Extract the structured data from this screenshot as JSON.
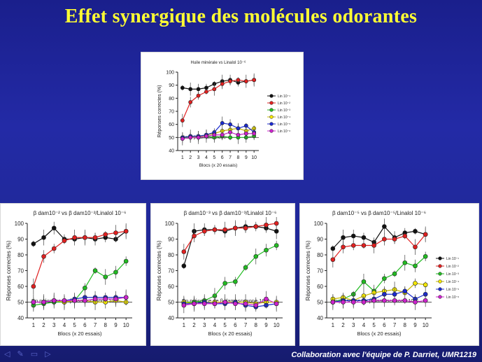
{
  "slide": {
    "title": "Effet synergique des molécules odorantes",
    "credit": "Collaboration avec l'équipe de P. Darriet, UMR1219"
  },
  "nav_icons": [
    "arrow-left-icon",
    "pencil-icon",
    "screen-icon",
    "arrow-right-icon"
  ],
  "chart_data": [
    {
      "type": "line",
      "title": "Huile minérale vs Linalol 10⁻⁶",
      "xlabel": "Blocs (x 20 essais)",
      "ylabel": "Réponses correctes (%)",
      "annotation": "Sans β damascenone",
      "x": [
        1,
        2,
        3,
        4,
        5,
        6,
        7,
        8,
        9,
        10
      ],
      "ylim": [
        40,
        100
      ],
      "yticks": [
        40,
        50,
        60,
        70,
        80,
        90,
        100
      ],
      "legend": [
        "Lin 10⁻¹",
        "Lin 10⁻²",
        "Lin 10⁻³",
        "Lin 10⁻⁴",
        "Lin 10⁻⁵",
        "Lin 10⁻⁶"
      ],
      "legend_position": "right",
      "series": [
        {
          "name": "Lin 10⁻¹",
          "color": "#111111",
          "values": [
            88,
            87,
            87,
            88,
            91,
            93,
            94,
            92,
            93,
            94
          ]
        },
        {
          "name": "Lin 10⁻²",
          "color": "#e02020",
          "values": [
            63,
            77,
            82,
            85,
            87,
            91,
            93,
            94,
            93,
            94
          ]
        },
        {
          "name": "Lin 10⁻³",
          "color": "#22bb22",
          "values": [
            50,
            50,
            51,
            51,
            50,
            51,
            50,
            50,
            50,
            51
          ]
        },
        {
          "name": "Lin 10⁻⁴",
          "color": "#f2e600",
          "values": [
            50,
            51,
            50,
            52,
            53,
            55,
            56,
            57,
            55,
            57
          ]
        },
        {
          "name": "Lin 10⁻⁵",
          "color": "#1a2ad0",
          "values": [
            50,
            51,
            51,
            52,
            54,
            61,
            60,
            57,
            59,
            54
          ]
        },
        {
          "name": "Lin 10⁻⁶",
          "color": "#cc22cc",
          "values": [
            49,
            50,
            50,
            51,
            52,
            52,
            54,
            52,
            53,
            53
          ]
        }
      ]
    },
    {
      "type": "line",
      "title": "β dam10⁻² vs β dam10⁻²/Linalol 10⁻⁶",
      "xlabel": "Blocs (x 20 essais)",
      "ylabel": "Réponses correctes (%)",
      "annotation": "En présence de β damascenone 10⁻²",
      "x": [
        1,
        2,
        3,
        4,
        5,
        6,
        7,
        8,
        9,
        10
      ],
      "ylim": [
        40,
        100
      ],
      "yticks": [
        40,
        50,
        60,
        70,
        80,
        90,
        100
      ],
      "series": [
        {
          "color": "#111111",
          "values": [
            87,
            91,
            97,
            90,
            90,
            91,
            90,
            91,
            90,
            95
          ]
        },
        {
          "color": "#e02020",
          "values": [
            60,
            79,
            84,
            89,
            91,
            91,
            91,
            93,
            94,
            95
          ]
        },
        {
          "color": "#22bb22",
          "values": [
            48,
            49,
            50,
            50,
            51,
            59,
            70,
            66,
            69,
            76
          ]
        },
        {
          "color": "#f2e600",
          "values": [
            50,
            50,
            51,
            50,
            51,
            51,
            50,
            50,
            51,
            50
          ]
        },
        {
          "color": "#1a2ad0",
          "values": [
            50,
            50,
            51,
            51,
            52,
            53,
            53,
            53,
            53,
            53
          ]
        },
        {
          "color": "#cc22cc",
          "values": [
            50,
            50,
            51,
            51,
            51,
            51,
            52,
            52,
            52,
            53
          ]
        }
      ]
    },
    {
      "type": "line",
      "title": "β dam10⁻³ vs β dam10⁻³/Linalol 10⁻⁶",
      "xlabel": "Blocs (x 20 essais)",
      "ylabel": "Réponses correctes (%)",
      "annotation": "En présence de β damascenone 10⁻³",
      "x": [
        1,
        2,
        3,
        4,
        5,
        6,
        7,
        8,
        9,
        10
      ],
      "ylim": [
        40,
        100
      ],
      "yticks": [
        40,
        50,
        60,
        70,
        80,
        90,
        100
      ],
      "series": [
        {
          "color": "#111111",
          "values": [
            73,
            95,
            96,
            96,
            95,
            97,
            98,
            98,
            97,
            95
          ]
        },
        {
          "color": "#e02020",
          "values": [
            82,
            92,
            95,
            96,
            96,
            97,
            97,
            98,
            99,
            100
          ]
        },
        {
          "color": "#22bb22",
          "values": [
            50,
            50,
            51,
            54,
            62,
            63,
            72,
            79,
            83,
            86
          ]
        },
        {
          "color": "#f2e600",
          "values": [
            50,
            49,
            50,
            50,
            50,
            50,
            50,
            49,
            50,
            50
          ]
        },
        {
          "color": "#1a2ad0",
          "values": [
            49,
            49,
            50,
            49,
            49,
            50,
            48,
            47,
            48,
            49
          ]
        },
        {
          "color": "#cc22cc",
          "values": [
            48,
            49,
            49,
            49,
            50,
            49,
            49,
            48,
            52,
            49
          ]
        }
      ]
    },
    {
      "type": "line",
      "title": "β dam10⁻⁵ vs β dam10⁻⁵/Linalol 10⁻⁶",
      "xlabel": "Blocs (x 20 essais)",
      "ylabel": "Réponses correctes (%)",
      "annotation": "En présence de β damascenone 10⁻⁵",
      "x": [
        1,
        2,
        3,
        4,
        5,
        6,
        7,
        8,
        9,
        10
      ],
      "ylim": [
        40,
        100
      ],
      "yticks": [
        40,
        50,
        60,
        70,
        80,
        90,
        100
      ],
      "legend": [
        "Lin 10⁻¹",
        "Lin 10⁻²",
        "Lin 10⁻³",
        "Lin 10⁻⁴",
        "Lin 10⁻⁵",
        "Lin 10⁻⁶"
      ],
      "legend_position": "right",
      "series": [
        {
          "name": "Lin 10⁻¹",
          "color": "#111111",
          "values": [
            84,
            91,
            92,
            91,
            88,
            98,
            91,
            94,
            95,
            93
          ]
        },
        {
          "name": "Lin 10⁻²",
          "color": "#e02020",
          "values": [
            77,
            85,
            86,
            86,
            86,
            90,
            90,
            92,
            85,
            93
          ]
        },
        {
          "name": "Lin 10⁻³",
          "color": "#22bb22",
          "values": [
            50,
            52,
            55,
            63,
            57,
            65,
            68,
            75,
            73,
            79
          ]
        },
        {
          "name": "Lin 10⁻⁴",
          "color": "#f2e600",
          "values": [
            52,
            53,
            51,
            54,
            56,
            57,
            58,
            56,
            62,
            61
          ]
        },
        {
          "name": "Lin 10⁻⁵",
          "color": "#1a2ad0",
          "values": [
            50,
            51,
            51,
            51,
            52,
            55,
            55,
            57,
            52,
            55
          ]
        },
        {
          "name": "Lin 10⁻⁶",
          "color": "#cc22cc",
          "values": [
            50,
            50,
            50,
            50,
            51,
            51,
            51,
            51,
            50,
            51
          ]
        }
      ]
    }
  ]
}
